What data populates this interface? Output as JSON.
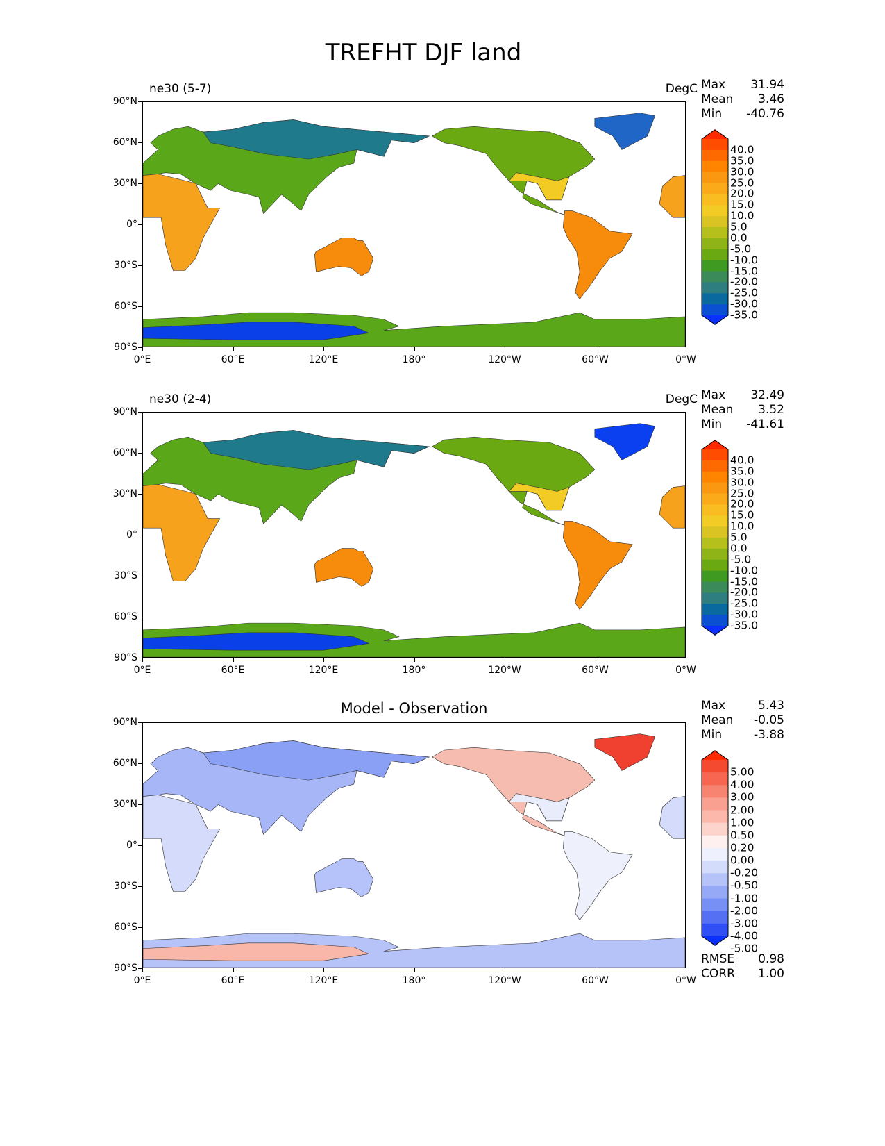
{
  "figure_title": "TREFHT DJF land",
  "x_ticks": [
    "0°E",
    "60°E",
    "120°E",
    "180°",
    "120°W",
    "60°W",
    "0°W"
  ],
  "y_ticks": [
    "90°N",
    "60°N",
    "30°N",
    "0°",
    "30°S",
    "60°S",
    "90°S"
  ],
  "panels": [
    {
      "title_left": "ne30 (5-7)",
      "title_center": "",
      "units": "DegC",
      "stats": [
        {
          "k": "Max",
          "v": "31.94"
        },
        {
          "k": "Mean",
          "v": "3.46"
        },
        {
          "k": "Min",
          "v": "-40.76"
        }
      ],
      "extra_stats": [],
      "colorbar_labels": [
        "40.0",
        "35.0",
        "30.0",
        "25.0",
        "20.0",
        "15.0",
        "10.0",
        "5.0",
        "0.0",
        "-5.0",
        "-10.0",
        "-15.0",
        "-20.0",
        "-25.0",
        "-30.0",
        "-35.0"
      ],
      "colorbar_colors": [
        "#ff2a00",
        "#ff4c00",
        "#ff6a00",
        "#ff8400",
        "#fa9812",
        "#fbaa1a",
        "#f9bd22",
        "#f2cc24",
        "#d9c424",
        "#b5c01c",
        "#8fb418",
        "#6aa912",
        "#3f9a22",
        "#3a8a5a",
        "#2e7e80",
        "#0a6aa0",
        "#0a50d0",
        "#0a30ff"
      ],
      "region_colors": {
        "africa": "#f7a21c",
        "eurasia": "#5aa81a",
        "eurasia_north": "#1f7a8c",
        "north_america": "#6aa912",
        "north_america_south": "#f2cc24",
        "south_america": "#f78c0c",
        "greenland": "#1f66c6",
        "australia": "#f78c0c",
        "antarctica": "#0a40e8",
        "antarctica_coast": "#5aa81a"
      }
    },
    {
      "title_left": "ne30 (2-4)",
      "title_center": "",
      "units": "DegC",
      "stats": [
        {
          "k": "Max",
          "v": "32.49"
        },
        {
          "k": "Mean",
          "v": "3.52"
        },
        {
          "k": "Min",
          "v": "-41.61"
        }
      ],
      "extra_stats": [],
      "colorbar_labels": [
        "40.0",
        "35.0",
        "30.0",
        "25.0",
        "20.0",
        "15.0",
        "10.0",
        "5.0",
        "0.0",
        "-5.0",
        "-10.0",
        "-15.0",
        "-20.0",
        "-25.0",
        "-30.0",
        "-35.0"
      ],
      "colorbar_colors": [
        "#ff2a00",
        "#ff4c00",
        "#ff6a00",
        "#ff8400",
        "#fa9812",
        "#fbaa1a",
        "#f9bd22",
        "#f2cc24",
        "#d9c424",
        "#b5c01c",
        "#8fb418",
        "#6aa912",
        "#3f9a22",
        "#3a8a5a",
        "#2e7e80",
        "#0a6aa0",
        "#0a50d0",
        "#0a30ff"
      ],
      "region_colors": {
        "africa": "#f7a21c",
        "eurasia": "#5aa81a",
        "eurasia_north": "#1f7a8c",
        "north_america": "#6aa912",
        "north_america_south": "#f2cc24",
        "south_america": "#f78c0c",
        "greenland": "#0a40f0",
        "australia": "#f78c0c",
        "antarctica": "#0a40e8",
        "antarctica_coast": "#5aa81a"
      }
    },
    {
      "title_left": "",
      "title_center": "Model - Observation",
      "units": "",
      "stats": [
        {
          "k": "Max",
          "v": "5.43"
        },
        {
          "k": "Mean",
          "v": "-0.05"
        },
        {
          "k": "Min",
          "v": "-3.88"
        }
      ],
      "extra_stats": [
        {
          "k": "RMSE",
          "v": "0.98"
        },
        {
          "k": "CORR",
          "v": "1.00"
        }
      ],
      "colorbar_labels": [
        "5.00",
        "4.00",
        "3.00",
        "2.00",
        "1.00",
        "0.50",
        "0.20",
        "0.00",
        "-0.20",
        "-0.50",
        "-1.00",
        "-2.00",
        "-3.00",
        "-4.00",
        "-5.00"
      ],
      "colorbar_colors": [
        "#ff2a00",
        "#f44a30",
        "#f76650",
        "#f78470",
        "#f9a090",
        "#fbb8ab",
        "#fdd4cc",
        "#fef0ee",
        "#eef0fd",
        "#d4dcfb",
        "#b6c3f9",
        "#96a9f7",
        "#7690f5",
        "#5570f3",
        "#3050f5",
        "#0a30ff"
      ],
      "region_colors": {
        "africa": "#d5dcfb",
        "eurasia": "#a7b6f7",
        "eurasia_north": "#8aa0f5",
        "north_america": "#f7bcb0",
        "north_america_south": "#e8ecfb",
        "south_america": "#eef0fb",
        "greenland": "#f04030",
        "australia": "#b5c3fa",
        "antarctica": "#f9b7aa",
        "antarctica_coast": "#b6c3f9"
      }
    }
  ]
}
